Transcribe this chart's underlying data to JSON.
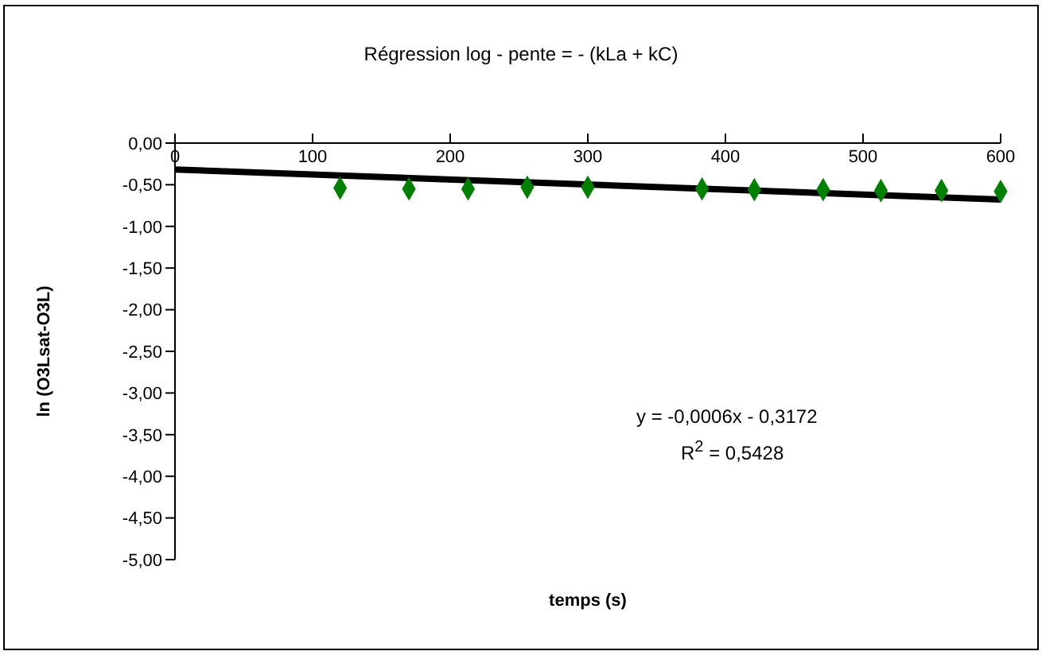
{
  "chart_data": {
    "type": "scatter",
    "title": "Régression log - pente = - (kLa + kC)",
    "xlabel": "temps (s)",
    "ylabel": "ln (O3Lsat-O3L)",
    "xlim": [
      0,
      600
    ],
    "xticks": [
      0,
      100,
      200,
      300,
      400,
      500,
      600
    ],
    "ylim": [
      -5,
      0
    ],
    "yticks": [
      {
        "value": 0,
        "label": "0,00"
      },
      {
        "value": -0.5,
        "label": "-0,50"
      },
      {
        "value": -1,
        "label": "-1,00"
      },
      {
        "value": -1.5,
        "label": "-1,50"
      },
      {
        "value": -2,
        "label": "-2,00"
      },
      {
        "value": -2.5,
        "label": "-2,50"
      },
      {
        "value": -3,
        "label": "-3,00"
      },
      {
        "value": -3.5,
        "label": "-3,50"
      },
      {
        "value": -4,
        "label": "-4,00"
      },
      {
        "value": -4.5,
        "label": "-4,50"
      },
      {
        "value": -5,
        "label": "-5,00"
      }
    ],
    "grid": false,
    "legend": false,
    "series": [
      {
        "color": "#008000",
        "marker": "diamond",
        "x": [
          120,
          170,
          213,
          256,
          300,
          383,
          421,
          471,
          513,
          557,
          600
        ],
        "values": [
          -0.54,
          -0.55,
          -0.55,
          -0.53,
          -0.53,
          -0.55,
          -0.56,
          -0.56,
          -0.57,
          -0.57,
          -0.58
        ]
      },
      {
        "type": "line",
        "color": "#000000",
        "line_style": "solid",
        "x": [
          0,
          600
        ],
        "values": [
          -0.3172,
          -0.6772
        ]
      }
    ],
    "annotations": [
      "y = -0,0006x - 0,3172",
      "R$^{2}$ = 0,5428"
    ]
  }
}
